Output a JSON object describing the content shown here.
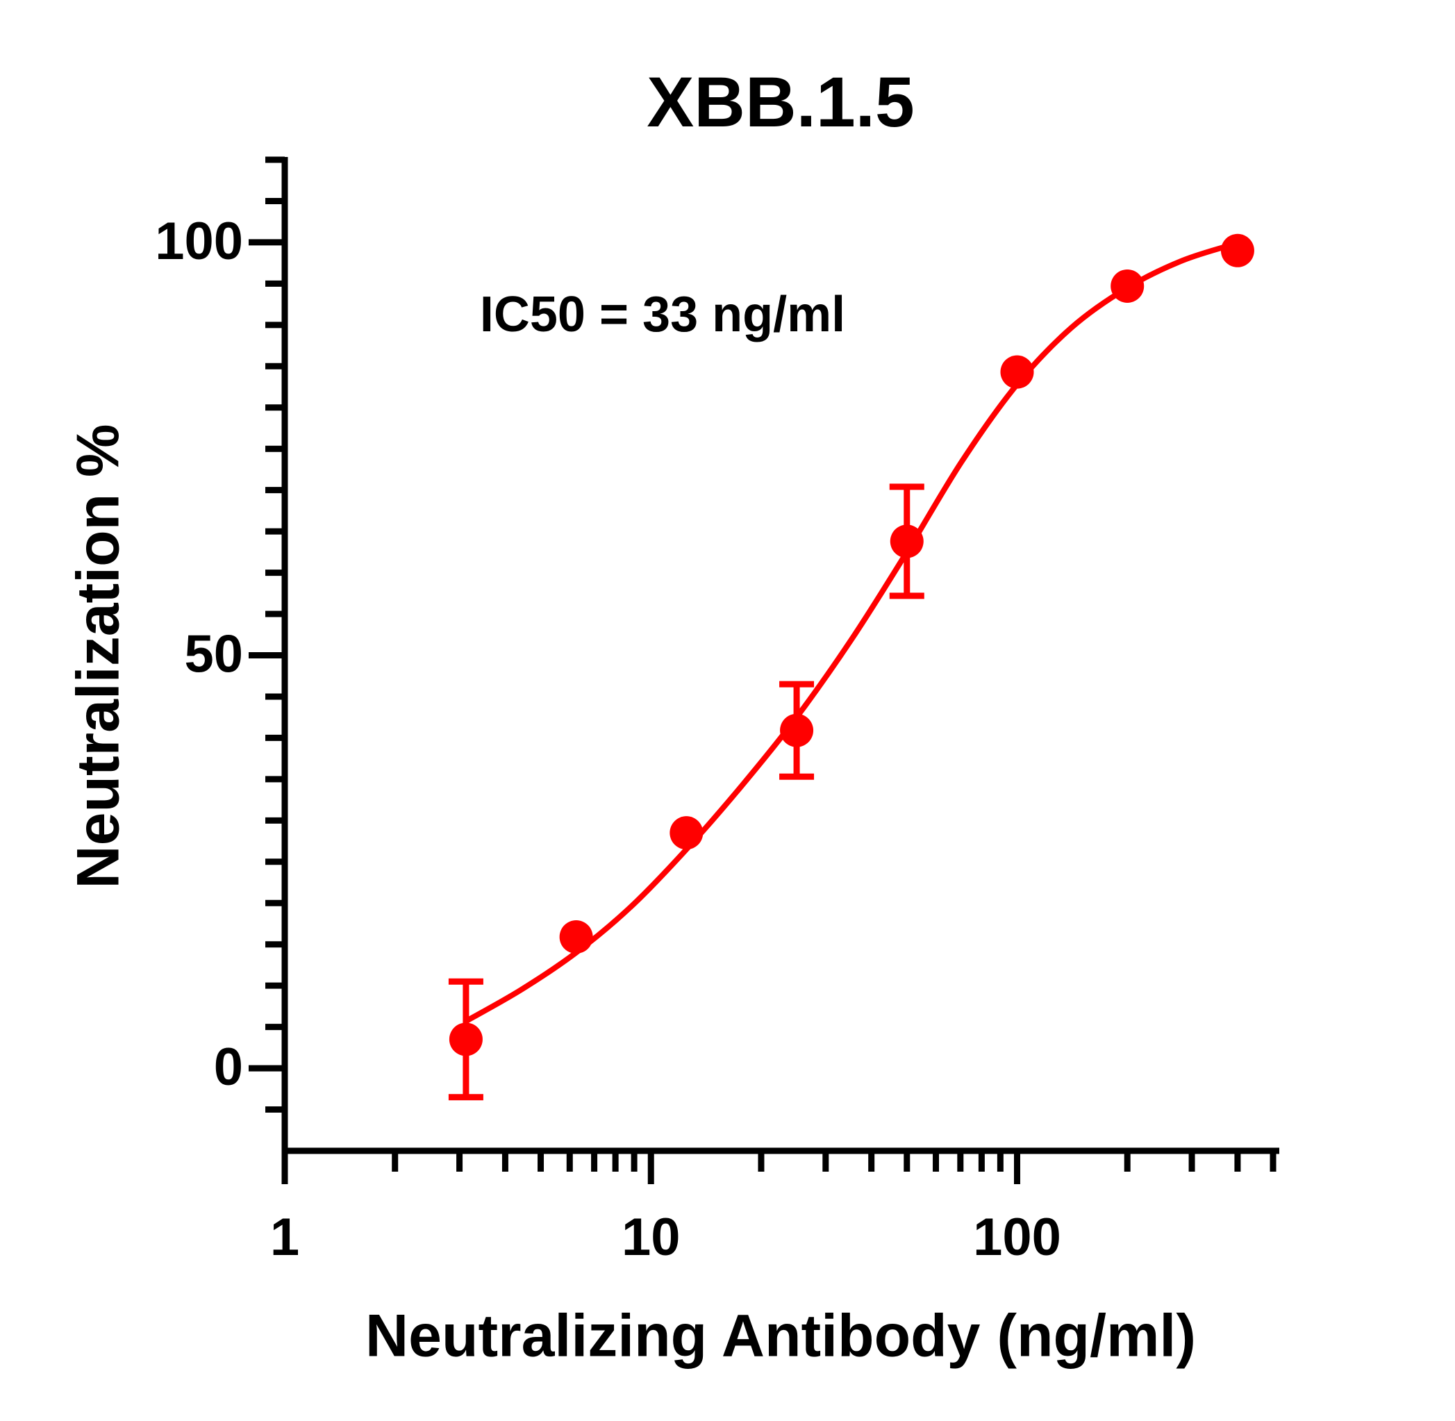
{
  "chart_data": {
    "type": "scatter",
    "title": "XBB.1.5",
    "annotation": "IC50 = 33 ng/ml",
    "xlabel": "Neutralizing Antibody (ng/ml)",
    "ylabel": "Neutralization %",
    "xscale": "log",
    "xlim": [
      1,
      520
    ],
    "xticks": [
      1,
      10,
      100
    ],
    "xminor_ticks": [
      2,
      3,
      4,
      5,
      6,
      7,
      8,
      9,
      20,
      30,
      40,
      50,
      60,
      70,
      80,
      90,
      200,
      300,
      400,
      500
    ],
    "ylim": [
      -10,
      110
    ],
    "yticks": [
      0,
      50,
      100
    ],
    "yminor_ticks": [
      -5,
      5,
      10,
      15,
      20,
      25,
      30,
      35,
      40,
      45,
      55,
      60,
      65,
      70,
      75,
      80,
      85,
      90,
      95,
      105,
      110
    ],
    "series": [
      {
        "color": "#ff0000",
        "x": [
          3.125,
          6.25,
          12.5,
          25,
          50,
          100,
          200,
          400
        ],
        "values": [
          3.5,
          15.9,
          28.5,
          40.9,
          63.8,
          84.3,
          94.7,
          99.0
        ],
        "errors": [
          7.0,
          null,
          null,
          5.6,
          6.6,
          null,
          null,
          null
        ]
      },
      {
        "type": "line",
        "color": "#ff0000",
        "x": [
          3.125,
          4.42,
          6.25,
          8.84,
          12.5,
          17.7,
          25,
          35.4,
          50,
          70.7,
          100,
          141,
          200,
          283,
          400
        ],
        "values": [
          5.7,
          9.5,
          14.0,
          19.6,
          26.5,
          34.2,
          42.5,
          52.0,
          62.5,
          73.5,
          82.8,
          89.7,
          94.5,
          97.8,
          99.9
        ]
      }
    ]
  }
}
